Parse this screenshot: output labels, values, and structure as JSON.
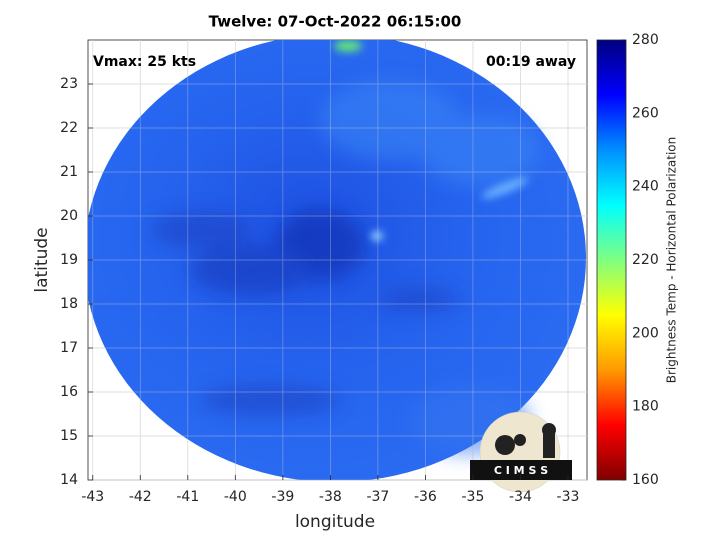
{
  "chart_data": {
    "type": "map",
    "title": "Twelve: 07-Oct-2022 06:15:00",
    "xlabel": "longitude",
    "ylabel": "latitude",
    "annotations": [
      "Vmax: 25 kts",
      "00:19 away"
    ],
    "xlim": [
      -43.1,
      -32.6
    ],
    "xticks": [
      -43,
      -42,
      -41,
      -40,
      -39,
      -38,
      -37,
      -36,
      -35,
      -34,
      -33
    ],
    "ylim": [
      14,
      24
    ],
    "yticks": [
      14,
      15,
      16,
      17,
      18,
      19,
      20,
      21,
      22,
      23
    ],
    "grid": true,
    "colorbar": {
      "label": "Brightness Temp - Horizontal Polarization",
      "clim": [
        160,
        280
      ],
      "ticks": [
        160,
        180,
        200,
        220,
        240,
        260,
        280
      ],
      "colormap": [
        "#800000",
        "#ff0000",
        "#ff9900",
        "#ffff00",
        "#80ff80",
        "#00ffff",
        "#0090ff",
        "#0000ff",
        "#000080"
      ]
    },
    "logo_text": "C I M S S"
  }
}
